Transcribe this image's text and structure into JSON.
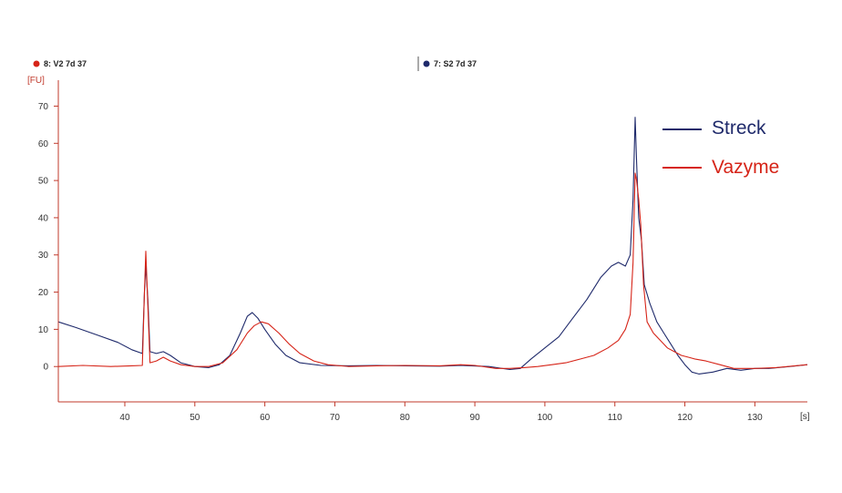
{
  "chart_data": {
    "type": "line",
    "title": "",
    "xlabel": "[s]",
    "ylabel": "[FU]",
    "xlim": [
      30.5,
      137.5
    ],
    "ylim": [
      -9.5,
      75.5
    ],
    "grid": false,
    "x_ticks": [
      40,
      50,
      60,
      70,
      80,
      90,
      100,
      110,
      120,
      130
    ],
    "y_ticks": [
      0,
      10,
      20,
      30,
      40,
      50,
      60,
      70
    ],
    "axis_color": "#c0392b",
    "sample_labels": [
      {
        "text": "8: V2 7d 37",
        "color": "#d62418"
      },
      {
        "text": "7: S2 7d 37",
        "color": "#1f2a6b"
      }
    ],
    "legend_position": "top-right",
    "series": [
      {
        "name": "Streck",
        "color": "#1f2a6b",
        "points": [
          [
            30.5,
            12
          ],
          [
            33,
            10.5
          ],
          [
            36,
            8.5
          ],
          [
            39,
            6.5
          ],
          [
            41,
            4.5
          ],
          [
            42.5,
            3.5
          ],
          [
            42.8,
            20
          ],
          [
            43.0,
            27
          ],
          [
            43.3,
            18
          ],
          [
            43.6,
            4
          ],
          [
            44.5,
            3.5
          ],
          [
            45.5,
            4
          ],
          [
            46.5,
            3
          ],
          [
            48,
            1
          ],
          [
            50,
            0
          ],
          [
            52,
            -0.3
          ],
          [
            53.5,
            0.5
          ],
          [
            55,
            3
          ],
          [
            56.5,
            9
          ],
          [
            57.5,
            13.5
          ],
          [
            58.2,
            14.5
          ],
          [
            59,
            13
          ],
          [
            60,
            10
          ],
          [
            61.5,
            6
          ],
          [
            63,
            3
          ],
          [
            65,
            1
          ],
          [
            68,
            0.3
          ],
          [
            72,
            0.2
          ],
          [
            76,
            0.3
          ],
          [
            80,
            0.2
          ],
          [
            85,
            0.1
          ],
          [
            88,
            0.3
          ],
          [
            92,
            0
          ],
          [
            95,
            -0.8
          ],
          [
            96.5,
            -0.5
          ],
          [
            98,
            2
          ],
          [
            100,
            5
          ],
          [
            102,
            8
          ],
          [
            104,
            13
          ],
          [
            106,
            18
          ],
          [
            108,
            24
          ],
          [
            109.5,
            27
          ],
          [
            110.5,
            28
          ],
          [
            111.5,
            27
          ],
          [
            112.2,
            30
          ],
          [
            112.6,
            45
          ],
          [
            112.9,
            67
          ],
          [
            113.1,
            55
          ],
          [
            113.4,
            40
          ],
          [
            113.8,
            34
          ],
          [
            114.2,
            22
          ],
          [
            115,
            17
          ],
          [
            116,
            12
          ],
          [
            117,
            9
          ],
          [
            118,
            6
          ],
          [
            119,
            3
          ],
          [
            120,
            0.5
          ],
          [
            121,
            -1.5
          ],
          [
            122,
            -2
          ],
          [
            124,
            -1.5
          ],
          [
            126,
            -0.5
          ],
          [
            128,
            -1
          ],
          [
            130,
            -0.5
          ],
          [
            132,
            -0.5
          ],
          [
            135,
            0
          ],
          [
            137.5,
            0.5
          ]
        ]
      },
      {
        "name": "Vazyme",
        "color": "#d62418",
        "points": [
          [
            30.5,
            0
          ],
          [
            34,
            0.3
          ],
          [
            38,
            0
          ],
          [
            41,
            0.2
          ],
          [
            42.5,
            0.3
          ],
          [
            42.8,
            20
          ],
          [
            43.0,
            31
          ],
          [
            43.3,
            16
          ],
          [
            43.6,
            1
          ],
          [
            44.5,
            1.5
          ],
          [
            45.5,
            2.5
          ],
          [
            46.5,
            1.5
          ],
          [
            48,
            0.5
          ],
          [
            50,
            0
          ],
          [
            52,
            0
          ],
          [
            54,
            1
          ],
          [
            56,
            4.5
          ],
          [
            57.5,
            9
          ],
          [
            58.5,
            11
          ],
          [
            59.5,
            12
          ],
          [
            60.5,
            11.5
          ],
          [
            62,
            9
          ],
          [
            63.5,
            6
          ],
          [
            65,
            3.5
          ],
          [
            67,
            1.5
          ],
          [
            69,
            0.5
          ],
          [
            72,
            0
          ],
          [
            76,
            0.2
          ],
          [
            80,
            0.3
          ],
          [
            85,
            0.2
          ],
          [
            88,
            0.5
          ],
          [
            90,
            0.3
          ],
          [
            93,
            -0.5
          ],
          [
            95,
            -0.5
          ],
          [
            97,
            -0.3
          ],
          [
            99,
            0
          ],
          [
            101,
            0.5
          ],
          [
            103,
            1
          ],
          [
            105,
            2
          ],
          [
            107,
            3
          ],
          [
            109,
            5
          ],
          [
            110.5,
            7
          ],
          [
            111.5,
            10
          ],
          [
            112.2,
            14
          ],
          [
            112.6,
            28
          ],
          [
            112.9,
            52
          ],
          [
            113.1,
            50
          ],
          [
            113.4,
            45
          ],
          [
            113.7,
            38
          ],
          [
            114.1,
            22
          ],
          [
            114.6,
            12
          ],
          [
            115.5,
            9
          ],
          [
            116.5,
            7
          ],
          [
            117.5,
            5
          ],
          [
            118.5,
            4
          ],
          [
            119.5,
            3
          ],
          [
            120.5,
            2.5
          ],
          [
            121.5,
            2
          ],
          [
            123,
            1.5
          ],
          [
            125,
            0.5
          ],
          [
            127,
            -0.5
          ],
          [
            130,
            -0.5
          ],
          [
            133,
            -0.3
          ],
          [
            137.5,
            0.5
          ]
        ]
      }
    ]
  }
}
